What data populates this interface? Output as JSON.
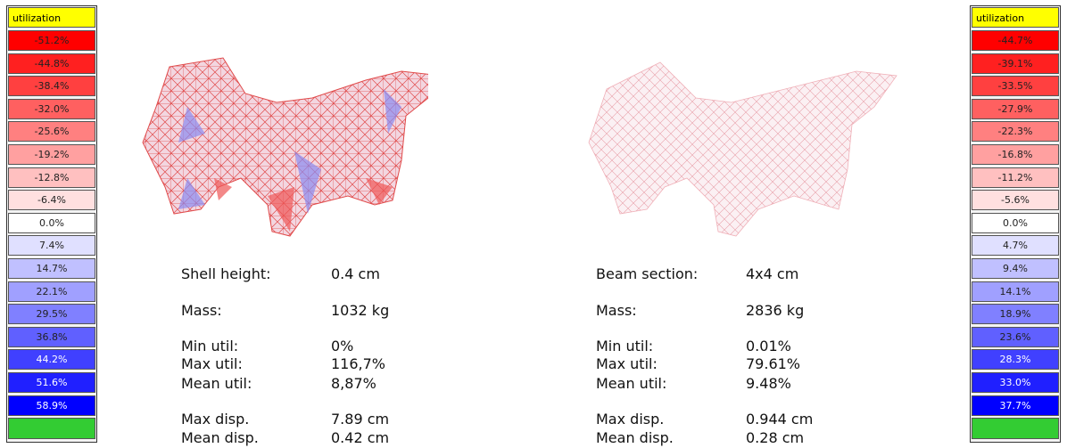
{
  "left_legend": {
    "title": "utilization",
    "footer_color": "#33cc33",
    "items": [
      {
        "label": "-51.2%",
        "color": "#ff0000"
      },
      {
        "label": "-44.8%",
        "color": "#ff2020"
      },
      {
        "label": "-38.4%",
        "color": "#ff4040"
      },
      {
        "label": "-32.0%",
        "color": "#ff6060"
      },
      {
        "label": "-25.6%",
        "color": "#ff8080"
      },
      {
        "label": "-19.2%",
        "color": "#ffa0a0"
      },
      {
        "label": "-12.8%",
        "color": "#ffc0c0"
      },
      {
        "label": "-6.4%",
        "color": "#ffe0e0"
      },
      {
        "label": "0.0%",
        "color": "#ffffff"
      },
      {
        "label": "7.4%",
        "color": "#e0e0ff"
      },
      {
        "label": "14.7%",
        "color": "#c0c0ff"
      },
      {
        "label": "22.1%",
        "color": "#a0a0ff"
      },
      {
        "label": "29.5%",
        "color": "#8080ff"
      },
      {
        "label": "36.8%",
        "color": "#6060ff"
      },
      {
        "label": "44.2%",
        "color": "#4040ff"
      },
      {
        "label": "51.6%",
        "color": "#2020ff"
      },
      {
        "label": "58.9%",
        "color": "#0000ff"
      }
    ]
  },
  "right_legend": {
    "title": "utilization",
    "footer_color": "#33cc33",
    "items": [
      {
        "label": "-44.7%",
        "color": "#ff0000"
      },
      {
        "label": "-39.1%",
        "color": "#ff2020"
      },
      {
        "label": "-33.5%",
        "color": "#ff4040"
      },
      {
        "label": "-27.9%",
        "color": "#ff6060"
      },
      {
        "label": "-22.3%",
        "color": "#ff8080"
      },
      {
        "label": "-16.8%",
        "color": "#ffa0a0"
      },
      {
        "label": "-11.2%",
        "color": "#ffc0c0"
      },
      {
        "label": "-5.6%",
        "color": "#ffe0e0"
      },
      {
        "label": "0.0%",
        "color": "#ffffff"
      },
      {
        "label": "4.7%",
        "color": "#e0e0ff"
      },
      {
        "label": "9.4%",
        "color": "#c0c0ff"
      },
      {
        "label": "14.1%",
        "color": "#a0a0ff"
      },
      {
        "label": "18.9%",
        "color": "#8080ff"
      },
      {
        "label": "23.6%",
        "color": "#6060ff"
      },
      {
        "label": "28.3%",
        "color": "#4040ff"
      },
      {
        "label": "33.0%",
        "color": "#2020ff"
      },
      {
        "label": "37.7%",
        "color": "#0000ff"
      }
    ]
  },
  "left_stats": [
    {
      "label": "Shell height:",
      "value": "0.4 cm"
    },
    {
      "label": "Mass:",
      "value": "1032 kg"
    },
    {
      "label": "Min util:",
      "value": "0%"
    },
    {
      "label": "Max util:",
      "value": "116,7%"
    },
    {
      "label": "Mean util:",
      "value": "8,87%"
    },
    {
      "label": "Max disp.",
      "value": "7.89 cm"
    },
    {
      "label": "Mean disp.",
      "value": "0.42 cm"
    }
  ],
  "right_stats": [
    {
      "label": "Beam section:",
      "value": "4x4 cm"
    },
    {
      "label": "Mass:",
      "value": "2836 kg"
    },
    {
      "label": "Min util:",
      "value": "0.01%"
    },
    {
      "label": "Max util:",
      "value": "79.61%"
    },
    {
      "label": "Mean util:",
      "value": "9.48%"
    },
    {
      "label": "Max disp.",
      "value": "0.944 cm"
    },
    {
      "label": "Mean disp.",
      "value": "0.28 cm"
    }
  ]
}
